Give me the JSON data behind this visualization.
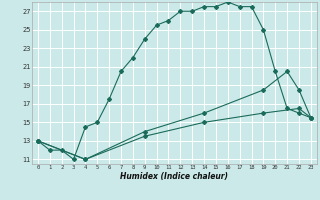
{
  "xlabel": "Humidex (Indice chaleur)",
  "bg_color": "#cce9e9",
  "grid_color": "#ffffff",
  "line_color": "#1a6b5a",
  "xlim": [
    -0.5,
    23.5
  ],
  "ylim": [
    10.5,
    28.0
  ],
  "xticks": [
    0,
    1,
    2,
    3,
    4,
    5,
    6,
    7,
    8,
    9,
    10,
    11,
    12,
    13,
    14,
    15,
    16,
    17,
    18,
    19,
    20,
    21,
    22,
    23
  ],
  "yticks": [
    11,
    13,
    15,
    17,
    19,
    21,
    23,
    25,
    27
  ],
  "series": [
    {
      "x": [
        0,
        1,
        2,
        3,
        4,
        5,
        6,
        7,
        8,
        9,
        10,
        11,
        12,
        13,
        14,
        15,
        16,
        17,
        18,
        19,
        20,
        21,
        22,
        23
      ],
      "y": [
        13,
        12,
        12,
        11,
        14.5,
        15,
        17.5,
        20.5,
        22,
        24,
        25.5,
        26,
        27,
        27,
        27.5,
        27.5,
        28,
        27.5,
        27.5,
        25,
        20.5,
        16.5,
        16,
        15.5
      ]
    },
    {
      "x": [
        0,
        4,
        9,
        14,
        19,
        22,
        23
      ],
      "y": [
        13,
        11,
        13.5,
        15,
        16,
        16.5,
        15.5
      ]
    },
    {
      "x": [
        0,
        4,
        9,
        14,
        19,
        21,
        22,
        23
      ],
      "y": [
        13,
        11,
        14,
        16,
        18.5,
        20.5,
        18.5,
        15.5
      ]
    }
  ]
}
